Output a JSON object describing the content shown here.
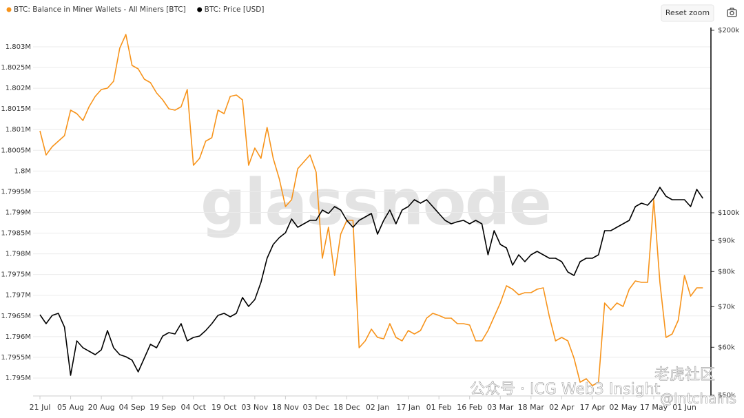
{
  "chart_data": {
    "type": "line",
    "categories": [
      "21 Jul",
      null,
      null,
      null,
      null,
      "05 Aug",
      null,
      null,
      null,
      null,
      "20 Aug",
      null,
      null,
      null,
      null,
      "04 Sep",
      null,
      null,
      null,
      null,
      "19 Sep",
      null,
      null,
      null,
      null,
      "04 Oct",
      null,
      null,
      null,
      null,
      "19 Oct",
      null,
      null,
      null,
      null,
      "03 Nov",
      null,
      null,
      null,
      null,
      "18 Nov",
      null,
      null,
      null,
      null,
      "03 Dec",
      null,
      null,
      null,
      null,
      "18 Dec",
      null,
      null,
      null,
      null,
      "02 Jan",
      null,
      null,
      null,
      null,
      "17 Jan",
      null,
      null,
      null,
      null,
      "01 Feb",
      null,
      null,
      null,
      null,
      "16 Feb",
      null,
      null,
      null,
      null,
      "03 Mar",
      null,
      null,
      null,
      null,
      "18 Mar",
      null,
      null,
      null,
      null,
      "02 Apr",
      null,
      null,
      null,
      null,
      "17 Apr",
      null,
      null,
      null,
      null,
      "02 May",
      null,
      null,
      null,
      null,
      "17 May",
      null,
      null,
      null,
      null,
      "01 Jun",
      null,
      null,
      null
    ],
    "series": [
      {
        "name": "BTC: Balance in Miner Wallets - All Miners [BTC]",
        "color": "#f7931a",
        "values": [
          1800971,
          1800389,
          1800588,
          1800721,
          1800855,
          1801470,
          1801387,
          1801220,
          1801553,
          1801802,
          1801969,
          1802002,
          1802168,
          1802967,
          1803299,
          1802551,
          1802468,
          1802218,
          1802135,
          1801886,
          1801719,
          1801503,
          1801470,
          1801553,
          1801969,
          1800139,
          1800306,
          1800721,
          1800805,
          1801470,
          1801387,
          1801802,
          1801836,
          1801719,
          1800139,
          1800555,
          1800306,
          1801054,
          1800306,
          1799807,
          1799141,
          1799308,
          1800056,
          1800222,
          1800389,
          1799973,
          1797894,
          1798642,
          1797478,
          1798476,
          1798809,
          1798809,
          1795732,
          1795898,
          1796181,
          1795981,
          1795948,
          1796314,
          1795981,
          1795898,
          1796148,
          1796064,
          1796148,
          1796447,
          1796563,
          1796513,
          1796447,
          1796447,
          1796314,
          1796314,
          1796281,
          1795898,
          1795898,
          1796148,
          1796480,
          1796813,
          1797229,
          1797146,
          1797012,
          1797062,
          1797062,
          1797146,
          1797179,
          1796480,
          1795898,
          1795981,
          1795898,
          1795482,
          1794900,
          1794983,
          1794817,
          1794900,
          1796813,
          1796647,
          1796813,
          1796730,
          1797146,
          1797345,
          1797312,
          1797312,
          1799308,
          1797312,
          1795981,
          1796064,
          1796397,
          1797478,
          1796979,
          1797179,
          1797179
        ]
      },
      {
        "name": "BTC: Price [USD]",
        "color": "#000000",
        "axis": "y2",
        "values": [
          67900,
          65630,
          67730,
          68260,
          64780,
          53940,
          61480,
          59890,
          59110,
          58340,
          59420,
          63940,
          59890,
          58340,
          57890,
          57140,
          54650,
          57590,
          60680,
          59890,
          62610,
          63440,
          63110,
          65630,
          61480,
          62290,
          62610,
          63940,
          65630,
          67730,
          68260,
          67370,
          68260,
          72490,
          70070,
          71920,
          76780,
          84150,
          88660,
          91010,
          92690,
          97670,
          94660,
          95900,
          97160,
          97160,
          101050,
          99740,
          102380,
          101050,
          97160,
          94660,
          97160,
          98440,
          99740,
          92210,
          97160,
          101050,
          95900,
          101050,
          102380,
          105100,
          103730,
          105100,
          102380,
          99740,
          97160,
          95900,
          96660,
          97160,
          95900,
          97160,
          95900,
          85250,
          93430,
          88660,
          87510,
          81970,
          85250,
          83050,
          85250,
          86370,
          85250,
          84150,
          84150,
          83050,
          79850,
          78820,
          83050,
          84150,
          84150,
          85250,
          93430,
          93430,
          94660,
          95900,
          97160,
          102380,
          103730,
          102920,
          105640,
          110160,
          106480,
          105100,
          105100,
          105100,
          102380,
          109300,
          105640
        ]
      }
    ],
    "ylim": [
      1794584,
      1803399
    ],
    "yticks": [
      {
        "value": 1795000,
        "label": "1.795M"
      },
      {
        "value": 1795500,
        "label": "1.7955M"
      },
      {
        "value": 1796000,
        "label": "1.796M"
      },
      {
        "value": 1796500,
        "label": "1.7965M"
      },
      {
        "value": 1797000,
        "label": "1.797M"
      },
      {
        "value": 1797500,
        "label": "1.7975M"
      },
      {
        "value": 1798000,
        "label": "1.798M"
      },
      {
        "value": 1798500,
        "label": "1.7985M"
      },
      {
        "value": 1799000,
        "label": "1.799M"
      },
      {
        "value": 1799500,
        "label": "1.7995M"
      },
      {
        "value": 1800000,
        "label": "1.8M"
      },
      {
        "value": 1800500,
        "label": "1.8005M"
      },
      {
        "value": 1801000,
        "label": "1.801M"
      },
      {
        "value": 1801500,
        "label": "1.8015M"
      },
      {
        "value": 1802000,
        "label": "1.802M"
      },
      {
        "value": 1802500,
        "label": "1.8025M"
      },
      {
        "value": 1803000,
        "label": "1.803M"
      }
    ],
    "y2lim": [
      50000,
      200000
    ],
    "y2ticks": [
      {
        "value": 50000,
        "label": "$50k"
      },
      {
        "value": 60000,
        "label": "$60k"
      },
      {
        "value": 70000,
        "label": "$70k"
      },
      {
        "value": 80000,
        "label": "$80k"
      },
      {
        "value": 90000,
        "label": "$90k"
      },
      {
        "value": 100000,
        "label": "$100k"
      },
      {
        "value": 200000,
        "label": "$200k"
      }
    ],
    "y2_log": true,
    "grid": true,
    "watermark": "glassnode"
  },
  "toolbar": {
    "reset_zoom": "Reset zoom"
  },
  "overlays": [
    "公众号 · ICG Web3 Insight",
    "老虎社区",
    "@Intchains"
  ]
}
